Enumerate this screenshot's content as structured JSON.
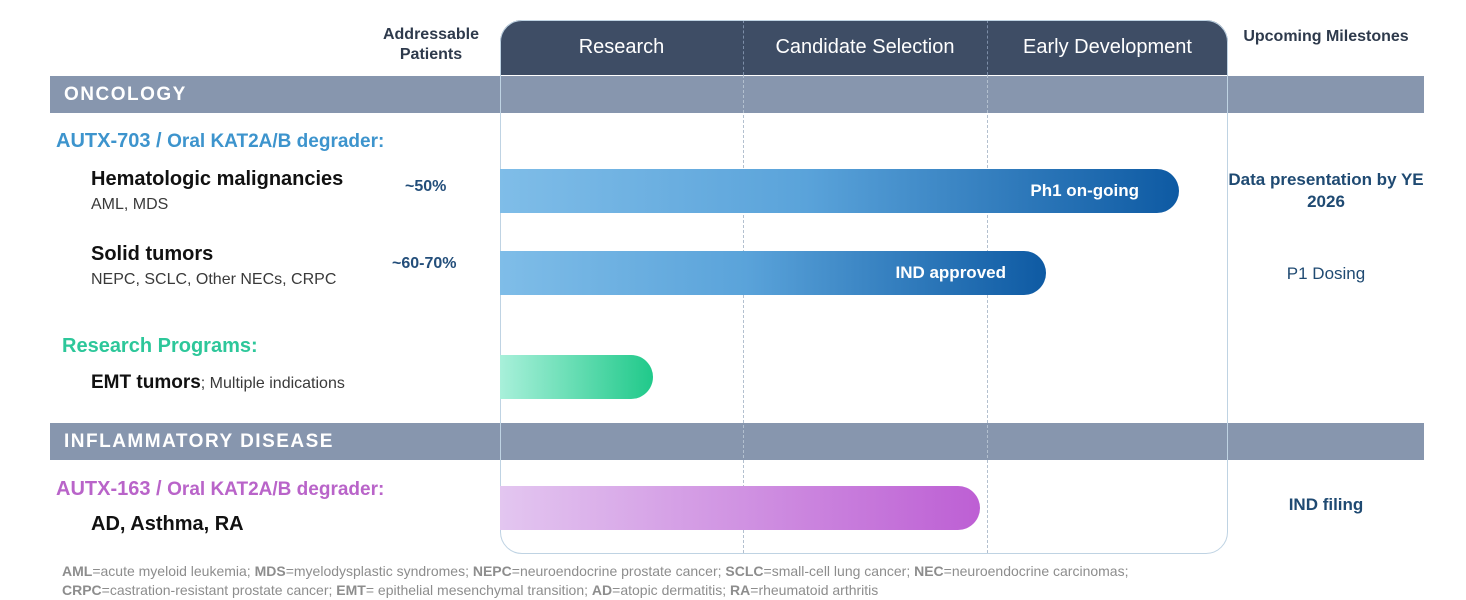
{
  "headers": {
    "left": "Addressable Patients",
    "phases": [
      "Research",
      "Candidate Selection",
      "Early Development"
    ],
    "right": "Upcoming Milestones"
  },
  "sections": {
    "oncology": "ONCOLOGY",
    "inflammatory": "INFLAMMATORY DISEASE"
  },
  "programs": {
    "autx703": {
      "name": "AUTX-703",
      "sep": " / ",
      "desc": "Oral KAT2A/B degrader:"
    },
    "research": {
      "name": "Research Programs:"
    },
    "autx163": {
      "name": "AUTX-163",
      "sep": " / ",
      "desc": "Oral KAT2A/B degrader:"
    }
  },
  "indications": {
    "heme": {
      "title": "Hematologic malignancies",
      "sub": "AML, MDS",
      "patients": "~50%"
    },
    "solid": {
      "title": "Solid tumors",
      "sub": "NEPC, SCLC, Other NECs, CRPC",
      "patients": "~60-70%"
    },
    "emt": {
      "title": "EMT tumors",
      "sub": "; Multiple indications"
    },
    "ad": {
      "title": "AD, Asthma, RA"
    }
  },
  "chart_data": {
    "type": "bar",
    "orientation": "horizontal",
    "stages": [
      "Research",
      "Candidate Selection",
      "Early Development"
    ],
    "xlim": [
      0,
      3
    ],
    "series": [
      {
        "program": "AUTX-703",
        "indication": "Hematologic malignancies",
        "patients": "~50%",
        "progress": 2.8,
        "label": "Ph1 on-going",
        "milestone": "Data presentation by YE 2026",
        "color": "#0e5aa3"
      },
      {
        "program": "AUTX-703",
        "indication": "Solid tumors",
        "patients": "~60-70%",
        "progress": 2.25,
        "label": "IND approved",
        "milestone": "P1 Dosing",
        "color": "#1664ab"
      },
      {
        "program": "Research Programs",
        "indication": "EMT tumors",
        "progress": 0.63,
        "label": "",
        "milestone": "",
        "color": "#20c98a"
      },
      {
        "program": "AUTX-163",
        "indication": "AD, Asthma, RA",
        "progress": 1.98,
        "label": "",
        "milestone": "IND filing",
        "color": "#bd5fd4"
      }
    ]
  },
  "footnote": {
    "parts": [
      {
        "abbr": "AML",
        "text": "=acute myeloid leukemia; "
      },
      {
        "abbr": "MDS",
        "text": "=myelodysplastic syndromes; "
      },
      {
        "abbr": "NEPC",
        "text": "=neuroendocrine prostate cancer; "
      },
      {
        "abbr": "SCLC",
        "text": "=small-cell lung cancer; "
      },
      {
        "abbr": "NEC",
        "text": "=neuroendocrine carcinomas; "
      },
      {
        "abbr": "CRPC",
        "text": "=castration-resistant prostate cancer; "
      },
      {
        "abbr": "EMT",
        "text": "= epithelial mesenchymal transition; "
      },
      {
        "abbr": "AD",
        "text": "=atopic dermatitis; "
      },
      {
        "abbr": "RA",
        "text": "=rheumatoid arthritis"
      }
    ]
  }
}
